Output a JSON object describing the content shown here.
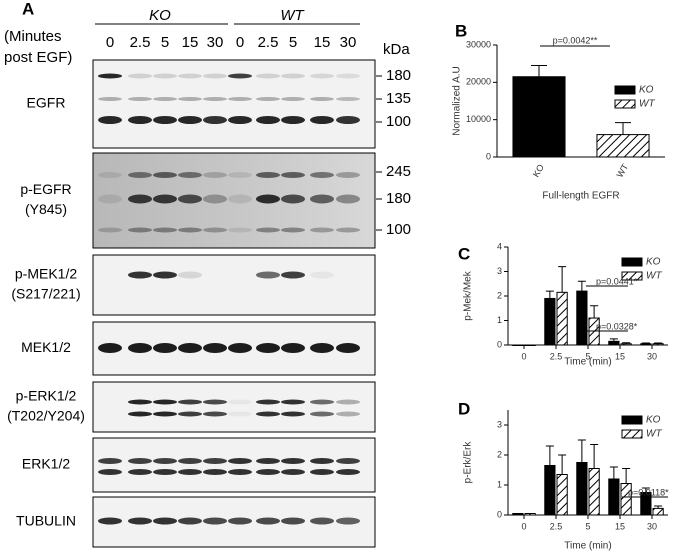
{
  "blot": {
    "panel_label": "A",
    "groups": [
      "KO",
      "WT"
    ],
    "time_header": [
      "(Minutes",
      "post EGF)"
    ],
    "lanes": [
      "0",
      "2.5",
      "5",
      "15",
      "30",
      "0",
      "2.5",
      "5",
      "15",
      "30"
    ],
    "kda_label": "kDa",
    "blots": [
      {
        "label": [
          "EGFR"
        ],
        "markers": [
          "180",
          "135",
          "100"
        ]
      },
      {
        "label": [
          "p-EGFR",
          "(Y845)"
        ],
        "markers": [
          "245",
          "180",
          "100"
        ]
      },
      {
        "label": [
          "p-MEK1/2",
          "(S217/221)"
        ]
      },
      {
        "label": [
          "MEK1/2"
        ]
      },
      {
        "label": [
          "p-ERK1/2",
          "(T202/Y204)"
        ]
      },
      {
        "label": [
          "ERK1/2"
        ]
      },
      {
        "label": [
          "TUBULIN"
        ]
      }
    ]
  },
  "chart_data": [
    {
      "type": "bar",
      "panel_label": "B",
      "y_label": "Normalized A.U",
      "x_label": "Full-length EGFR",
      "categories": [
        "KO",
        "WT"
      ],
      "values": [
        21500,
        6000
      ],
      "errors": [
        3000,
        3200
      ],
      "fills": [
        "solid",
        "hatch"
      ],
      "color": "#000000",
      "ylim": [
        0,
        30000
      ],
      "yticks": [
        0,
        10000,
        20000,
        30000
      ],
      "legend": true,
      "annotations": [
        "p=0.0042**"
      ]
    },
    {
      "type": "grouped_bar",
      "panel_label": "C",
      "y_label": "p-Mek/Mek",
      "x_label": "Time (min)",
      "categories": [
        "0",
        "2.5",
        "5",
        "15",
        "30"
      ],
      "series": [
        {
          "name": "KO",
          "color": "#000000",
          "fill": "solid",
          "values": [
            0,
            1.9,
            2.2,
            0.15,
            0.05
          ],
          "errors": [
            0,
            0.3,
            0.4,
            0.1,
            0.03
          ]
        },
        {
          "name": "WT",
          "color": "#000000",
          "fill": "hatch",
          "values": [
            0,
            2.15,
            1.1,
            0.05,
            0.05
          ],
          "errors": [
            0,
            1.05,
            0.5,
            0.04,
            0.03
          ]
        }
      ],
      "ylim": [
        0,
        4
      ],
      "yticks": [
        0,
        1,
        2,
        3,
        4
      ],
      "legend": true,
      "annotations": [
        "p=0.0441*",
        "p=0.0328*"
      ]
    },
    {
      "type": "grouped_bar",
      "panel_label": "D",
      "y_label": "p-Erk/Erk",
      "x_label": "Time (min)",
      "categories": [
        "0",
        "2.5",
        "5",
        "15",
        "30"
      ],
      "series": [
        {
          "name": "KO",
          "color": "#000000",
          "fill": "solid",
          "values": [
            0.05,
            1.65,
            1.75,
            1.2,
            0.75
          ],
          "errors": [
            0,
            0.65,
            0.75,
            0.4,
            0.15
          ]
        },
        {
          "name": "WT",
          "color": "#000000",
          "fill": "hatch",
          "values": [
            0.05,
            1.35,
            1.55,
            1.05,
            0.22
          ],
          "errors": [
            0,
            0.65,
            0.8,
            0.5,
            0.08
          ]
        }
      ],
      "ylim": [
        0,
        3.5
      ],
      "yticks": [
        0,
        1,
        2,
        3
      ],
      "legend": true,
      "annotations": [
        "p=0.0118*"
      ]
    }
  ]
}
